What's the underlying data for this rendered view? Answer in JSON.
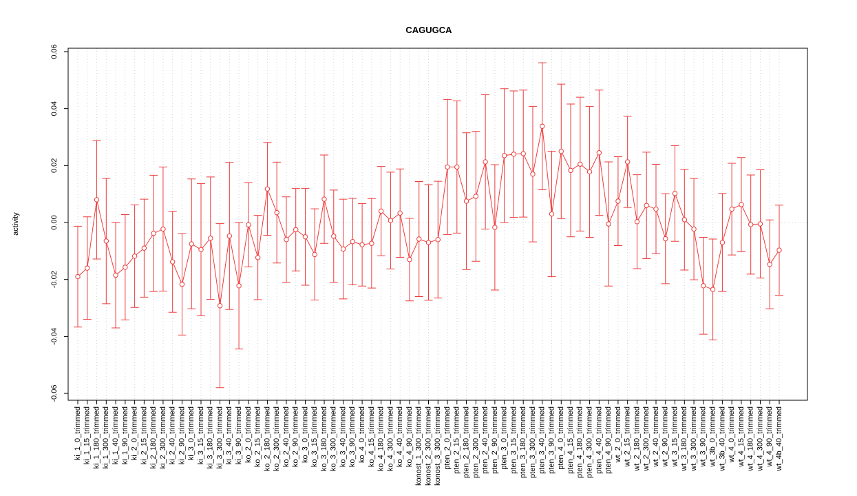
{
  "chart_data": {
    "type": "errorbar",
    "title": "CAGUGCA",
    "ylabel": "activity",
    "categories": [
      "ki_1_0_trimmed",
      "ki_1_15_trimmed",
      "ki_1_180_trimmed",
      "ki_1_300_trimmed",
      "ki_1_40_trimmed",
      "ki_1_90_trimmed",
      "ki_2_0_trimmed",
      "ki_2_15_trimmed",
      "ki_2_180_trimmed",
      "ki_2_300_trimmed",
      "ki_2_40_trimmed",
      "ki_2_90_trimmed",
      "ki_3_0_trimmed",
      "ki_3_15_trimmed",
      "ki_3_180_trimmed",
      "ki_3_300_trimmed",
      "ki_3_40_trimmed",
      "ki_3_90_trimmed",
      "ko_2_0_trimmed",
      "ko_2_15_trimmed",
      "ko_2_180_trimmed",
      "ko_2_300_trimmed",
      "ko_2_40_trimmed",
      "ko_2_90_trimmed",
      "ko_3_0_trimmed",
      "ko_3_15_trimmed",
      "ko_3_180_trimmed",
      "ko_3_300_trimmed",
      "ko_3_40_trimmed",
      "ko_3_90_trimmed",
      "ko_4_0_trimmed",
      "ko_4_15_trimmed",
      "ko_4_180_trimmed",
      "ko_4_300_trimmed",
      "ko_4_40_trimmed",
      "ko_4_90_trimmed",
      "konost_1_300_trimmed",
      "konost_2_300_trimmed",
      "konost_3_300_trimmed",
      "pten_2_0_trimmed",
      "pten_2_15_trimmed",
      "pten_2_180_trimmed",
      "pten_2_300_trimmed",
      "pten_2_40_trimmed",
      "pten_2_90_trimmed",
      "pten_3_0_trimmed",
      "pten_3_15_trimmed",
      "pten_3_180_trimmed",
      "pten_3_300_trimmed",
      "pten_3_40_trimmed",
      "pten_3_90_trimmed",
      "pten_4_0_trimmed",
      "pten_4_15_trimmed",
      "pten_4_180_trimmed",
      "pten_4_300_trimmed",
      "pten_4_40_trimmed",
      "pten_4_90_trimmed",
      "wt_2_0_trimmed",
      "wt_2_15_trimmed",
      "wt_2_180_trimmed",
      "wt_2_300_trimmed",
      "wt_2_40_trimmed",
      "wt_2_90_trimmed",
      "wt_3_15_trimmed",
      "wt_3_180_trimmed",
      "wt_3_300_trimmed",
      "wt_3_90_trimmed",
      "wt_3b_0_trimmed",
      "wt_3b_40_trimmed",
      "wt_4_0_trimmed",
      "wt_4_15_trimmed",
      "wt_4_180_trimmed",
      "wt_4_300_trimmed",
      "wt_4_90_trimmed",
      "wt_4b_40_trimmed"
    ],
    "values": [
      -0.019,
      -0.016,
      0.008,
      -0.0065,
      -0.0185,
      -0.0157,
      -0.0118,
      -0.009,
      -0.0038,
      -0.0023,
      -0.0138,
      -0.0217,
      -0.0075,
      -0.0095,
      -0.0055,
      -0.0292,
      -0.0047,
      -0.0222,
      -0.0008,
      -0.0123,
      0.0118,
      0.0035,
      -0.006,
      -0.0025,
      -0.005,
      -0.0112,
      0.0082,
      -0.0048,
      -0.0093,
      -0.0067,
      -0.0078,
      -0.0073,
      0.004,
      0.0007,
      0.0033,
      -0.013,
      -0.0058,
      -0.007,
      -0.006,
      0.0195,
      0.0195,
      0.0075,
      0.0092,
      0.0213,
      -0.0017,
      0.0235,
      0.024,
      0.0242,
      0.017,
      0.0338,
      0.003,
      0.025,
      0.0183,
      0.0205,
      0.0178,
      0.0245,
      -0.0005,
      0.0075,
      0.0213,
      0.0003,
      0.006,
      0.0047,
      -0.0057,
      0.0102,
      0.001,
      -0.0023,
      -0.0222,
      -0.0235,
      -0.007,
      0.0047,
      0.0063,
      -0.0007,
      -0.0005,
      -0.0147,
      -0.0097
    ],
    "errors": [
      0.0177,
      0.018,
      0.0208,
      0.022,
      0.0185,
      0.0185,
      0.018,
      0.0172,
      0.0204,
      0.0218,
      0.0177,
      0.0178,
      0.0228,
      0.0232,
      0.0215,
      0.0288,
      0.0258,
      0.0222,
      0.0148,
      0.0148,
      0.0163,
      0.0177,
      0.015,
      0.0145,
      0.017,
      0.016,
      0.0155,
      0.0162,
      0.0175,
      0.0152,
      0.0145,
      0.0157,
      0.0157,
      0.017,
      0.0155,
      0.0145,
      0.0202,
      0.0203,
      0.0205,
      0.0237,
      0.0232,
      0.024,
      0.0228,
      0.0236,
      0.022,
      0.0235,
      0.0222,
      0.0223,
      0.0238,
      0.0223,
      0.022,
      0.0236,
      0.0233,
      0.0235,
      0.023,
      0.022,
      0.0218,
      0.0156,
      0.016,
      0.0165,
      0.0187,
      0.0157,
      0.0158,
      0.0168,
      0.0177,
      0.0178,
      0.017,
      0.0177,
      0.0172,
      0.0161,
      0.0165,
      0.0174,
      0.019,
      0.0156,
      0.0158
    ],
    "color": "#ee3b3b",
    "ylim": [
      -0.0624,
      0.0612
    ],
    "yticks": [
      -0.06,
      -0.04,
      -0.02,
      {
        "value": 0,
        "label": "0.00"
      },
      0.02,
      0.04,
      0.06
    ],
    "hline": 0,
    "grid": "x"
  }
}
